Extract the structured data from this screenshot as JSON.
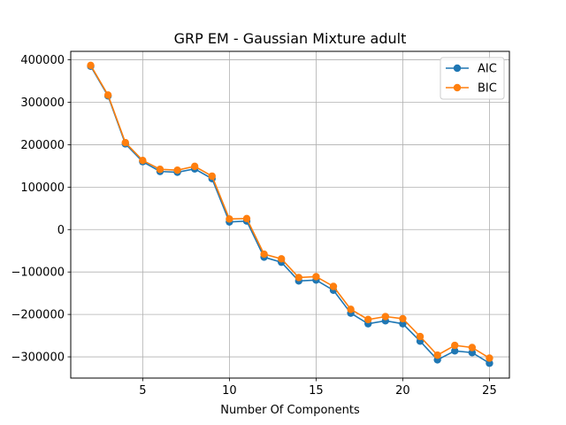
{
  "chart_data": {
    "type": "line",
    "title": "GRP EM - Gaussian Mixture adult",
    "xlabel": "Number Of Components",
    "ylabel": "",
    "xlim": [
      0.85,
      26.15
    ],
    "ylim": [
      -350000,
      420000
    ],
    "xticks": [
      5,
      10,
      15,
      20,
      25
    ],
    "xtick_labels": [
      "5",
      "10",
      "15",
      "20",
      "25"
    ],
    "yticks": [
      -300000,
      -200000,
      -100000,
      0,
      100000,
      200000,
      300000,
      400000
    ],
    "ytick_labels": [
      "−300000",
      "−200000",
      "−100000",
      "0",
      "100000",
      "200000",
      "300000",
      "400000"
    ],
    "grid": true,
    "legend_position": "top-right",
    "x": [
      2,
      3,
      4,
      5,
      6,
      7,
      8,
      9,
      10,
      11,
      12,
      13,
      14,
      15,
      16,
      17,
      18,
      19,
      20,
      21,
      22,
      23,
      24,
      25
    ],
    "series": [
      {
        "name": "AIC",
        "color": "#1f77b4",
        "values": [
          385000,
          315000,
          202000,
          160000,
          137000,
          135000,
          143000,
          120000,
          18000,
          20000,
          -65000,
          -77000,
          -121000,
          -119000,
          -143000,
          -197000,
          -222000,
          -215000,
          -222000,
          -263000,
          -307000,
          -286000,
          -290000,
          -315000
        ]
      },
      {
        "name": "BIC",
        "color": "#ff7f0e",
        "values": [
          387000,
          317000,
          205000,
          163000,
          142000,
          140000,
          149000,
          126000,
          25000,
          26000,
          -58000,
          -69000,
          -113000,
          -111000,
          -134000,
          -188000,
          -212000,
          -205000,
          -210000,
          -252000,
          -296000,
          -273000,
          -278000,
          -303000
        ]
      }
    ]
  }
}
